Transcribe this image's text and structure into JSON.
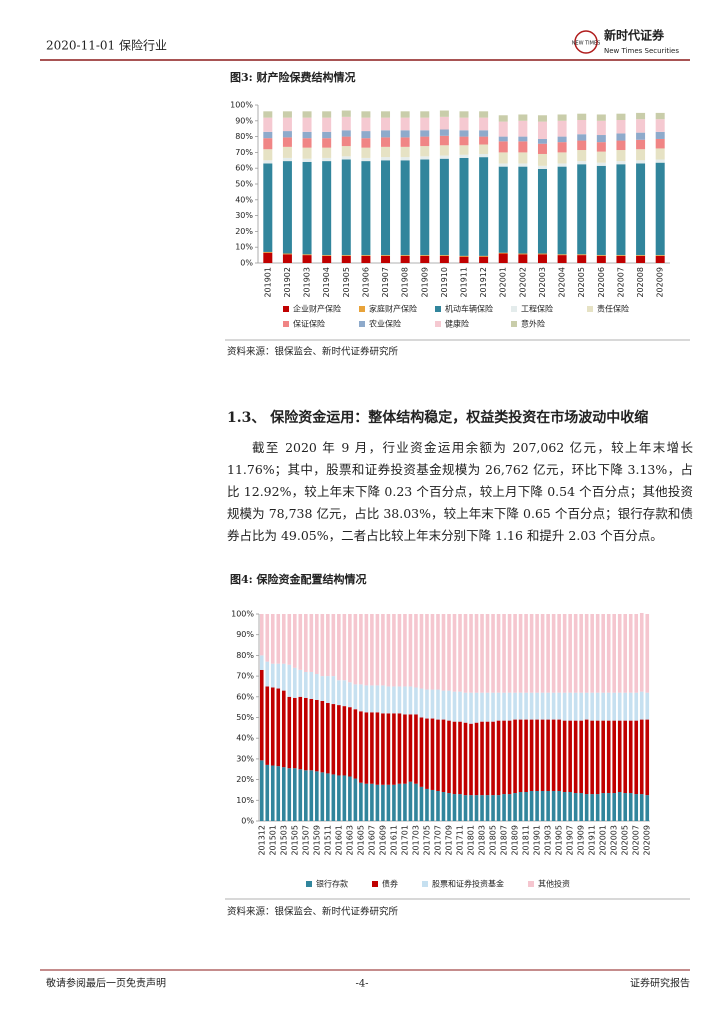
{
  "header": {
    "date_title": "2020-11-01 保险行业",
    "logo_mark": "NEW TIMES",
    "logo_cn": "新时代证券",
    "logo_en": "New Times Securities"
  },
  "section": {
    "heading": "1.3、 保险资金运用：整体结构稳定，权益类投资在市场波动中收缩",
    "paragraph": "截至 2020 年 9 月，行业资金运用余额为 207,062 亿元，较上年末增长 11.76%；其中，股票和证券投资基金规模为 26,762 亿元，环比下降 3.13%，占比 12.92%，较上年末下降 0.23 个百分点，较上月下降 0.54 个百分点；其他投资规模为 78,738 亿元，占比 38.03%，较上年末下降 0.65 个百分点；银行存款和债券占比为 49.05%，二者占比较上年末分别下降 1.16 和提升 2.03 个百分点。"
  },
  "chart_data": [
    {
      "type": "bar",
      "stacked": true,
      "title": "图3:  财产险保费结构情况",
      "source": "资料来源：银保监会、新时代证券研究所",
      "categories": [
        "201901",
        "201902",
        "201903",
        "201904",
        "201905",
        "201906",
        "201907",
        "201908",
        "201909",
        "201910",
        "201911",
        "201912",
        "202001",
        "202002",
        "202003",
        "202004",
        "202005",
        "202006",
        "202007",
        "202008",
        "202009"
      ],
      "ylim": [
        0,
        100
      ],
      "yticks": [
        {
          "value": 0,
          "label": "0%"
        },
        {
          "value": 10,
          "label": "10%"
        },
        {
          "value": 20,
          "label": "20%"
        },
        {
          "value": 30,
          "label": "30%"
        },
        {
          "value": 40,
          "label": "40%"
        },
        {
          "value": 50,
          "label": "50%"
        },
        {
          "value": 60,
          "label": "60%"
        },
        {
          "value": 70,
          "label": "70%"
        },
        {
          "value": 80,
          "label": "80%"
        },
        {
          "value": 90,
          "label": "90%"
        },
        {
          "value": 100,
          "label": "100%"
        }
      ],
      "series": [
        {
          "name": "企业财产保险",
          "color": "#c00000",
          "values": [
            6.5,
            5.5,
            5,
            4.5,
            4.5,
            4.5,
            4.5,
            4.5,
            4.5,
            4.5,
            4,
            4,
            6,
            5.5,
            5.5,
            5,
            5,
            4.5,
            4.5,
            4.5,
            4.5
          ]
        },
        {
          "name": "家庭财产保险",
          "color": "#e8a33a",
          "values": [
            0.5,
            0.5,
            0.5,
            0.5,
            0.5,
            0.5,
            0.5,
            0.5,
            0.5,
            0.5,
            0.5,
            0.5,
            0.5,
            0.5,
            0.5,
            0.5,
            0.5,
            0.5,
            0.5,
            0.5,
            0.5
          ]
        },
        {
          "name": "机动车辆保险",
          "color": "#31859c",
          "values": [
            56,
            58.5,
            58.5,
            59.5,
            60.5,
            59.5,
            60,
            60,
            60.5,
            61,
            62,
            62.5,
            54.5,
            55,
            53.5,
            55.5,
            57,
            56.5,
            57.5,
            58,
            58.5
          ]
        },
        {
          "name": "工程保险",
          "color": "#e4ecec",
          "values": [
            2,
            2,
            2,
            2,
            2,
            2,
            2,
            2,
            2,
            2,
            2,
            2,
            2,
            2,
            2,
            2,
            2,
            2,
            2,
            2,
            2
          ]
        },
        {
          "name": "责任保险",
          "color": "#e6e2c4",
          "values": [
            7,
            7,
            7,
            6.5,
            6.5,
            6.5,
            6.5,
            6.5,
            6.5,
            6.5,
            6,
            6,
            7,
            7,
            7.5,
            7,
            7,
            7,
            7,
            7,
            7
          ]
        },
        {
          "name": "保证保险",
          "color": "#f08585",
          "values": [
            7,
            6,
            6,
            6,
            6,
            6,
            6,
            6,
            6,
            6,
            5.5,
            5,
            7,
            7,
            6.5,
            6.5,
            6,
            6,
            6,
            6,
            6
          ]
        },
        {
          "name": "农业保险",
          "color": "#8eaacb",
          "values": [
            4,
            4,
            4,
            4,
            4,
            4.5,
            4.5,
            4.5,
            4,
            4,
            4,
            4,
            3,
            3,
            3,
            3.5,
            4,
            4.5,
            4.5,
            4.5,
            4.5
          ]
        },
        {
          "name": "健康险",
          "color": "#f5c9d1",
          "values": [
            9,
            8.5,
            9,
            9,
            8.5,
            8.5,
            8,
            8,
            8,
            8,
            8,
            8,
            9.5,
            10,
            11,
            10,
            9,
            9,
            8.5,
            8.5,
            8
          ]
        },
        {
          "name": "意外险",
          "color": "#c9cdaa",
          "values": [
            4,
            4,
            4,
            4,
            4,
            4,
            4,
            4,
            4,
            4,
            4,
            4,
            4,
            4,
            4,
            4,
            4,
            4,
            4,
            4,
            4
          ]
        }
      ]
    },
    {
      "type": "bar",
      "stacked": true,
      "title": "图4:  保险资金配置结构情况",
      "source": "资料来源：银保监会、新时代证券研究所",
      "categories": [
        "201312",
        null,
        "201501",
        null,
        "201503",
        null,
        "201505",
        null,
        "201507",
        null,
        "201509",
        null,
        "201511",
        null,
        "201601",
        null,
        "201603",
        null,
        "201605",
        null,
        "201607",
        null,
        "201609",
        null,
        "201611",
        null,
        "201701",
        null,
        "201703",
        null,
        "201705",
        null,
        "201707",
        null,
        "201709",
        null,
        "201711",
        null,
        "201801",
        null,
        "201803",
        null,
        "201805",
        null,
        "201807",
        null,
        "201809",
        null,
        "201811",
        null,
        "201901",
        null,
        "201903",
        null,
        "201905",
        null,
        "201907",
        null,
        "201909",
        null,
        "201911",
        null,
        "202001",
        null,
        "202003",
        null,
        "202005",
        null,
        "202007",
        null,
        "202009"
      ],
      "ylim": [
        0,
        100
      ],
      "yticks": [
        {
          "value": 0,
          "label": "0%"
        },
        {
          "value": 10,
          "label": "10%"
        },
        {
          "value": 20,
          "label": "20%"
        },
        {
          "value": 30,
          "label": "30%"
        },
        {
          "value": 40,
          "label": "40%"
        },
        {
          "value": 50,
          "label": "50%"
        },
        {
          "value": 60,
          "label": "60%"
        },
        {
          "value": 70,
          "label": "70%"
        },
        {
          "value": 80,
          "label": "80%"
        },
        {
          "value": 90,
          "label": "90%"
        },
        {
          "value": 100,
          "label": "100%"
        }
      ],
      "series": [
        {
          "name": "银行存款",
          "color": "#31859c",
          "values": [
            29.3,
            27.1,
            26.8,
            26.5,
            26,
            25.5,
            25.5,
            25,
            24.5,
            24.5,
            24,
            23.5,
            23,
            22.5,
            22,
            22,
            21.5,
            20.5,
            18.5,
            18,
            18,
            17.5,
            17.5,
            17.5,
            17.5,
            18,
            18,
            19,
            18,
            16.5,
            15.5,
            15,
            14.5,
            14,
            13.5,
            13,
            13,
            12.5,
            12.5,
            12.5,
            12.5,
            12.5,
            12.5,
            12.5,
            13,
            13,
            13.5,
            14,
            14,
            14.5,
            14.5,
            14.5,
            14.5,
            14.5,
            14.5,
            14,
            14,
            13.5,
            13.5,
            13,
            13,
            13,
            13.5,
            13.5,
            13.5,
            14,
            13.5,
            13.5,
            13,
            13,
            12.5
          ]
        },
        {
          "name": "债券",
          "color": "#c00000",
          "values": [
            43.7,
            37.9,
            37.7,
            37.5,
            37,
            34.5,
            34,
            35,
            35,
            34.5,
            34.5,
            34.5,
            34,
            34,
            34,
            33.5,
            33.5,
            33.5,
            34.5,
            34.5,
            34.5,
            35,
            34.5,
            34.5,
            34.5,
            34,
            33.5,
            32.5,
            33.5,
            33.5,
            34,
            34.5,
            34.5,
            35,
            35,
            35,
            35,
            35,
            34.5,
            35,
            35.5,
            35.5,
            35.5,
            36,
            35.5,
            35.5,
            35.5,
            35,
            35,
            34.5,
            34.5,
            34.5,
            34.5,
            34.5,
            34.5,
            34.5,
            34.5,
            35,
            35,
            36,
            35.5,
            35.5,
            35,
            35,
            35,
            34.5,
            35,
            35,
            35.5,
            36,
            36.5
          ]
        },
        {
          "name": "股票和证券投资基金",
          "color": "#c6e0f0",
          "values": [
            7,
            12,
            11.5,
            12,
            13,
            15.5,
            14.5,
            13,
            12.5,
            13,
            12.5,
            12,
            13,
            13.5,
            12,
            12.5,
            12,
            12,
            13,
            13,
            13,
            13,
            13.5,
            13,
            13,
            13,
            13.5,
            13.5,
            13,
            14,
            14,
            14,
            14.5,
            14,
            14.5,
            14.5,
            14.5,
            14.5,
            15,
            14.5,
            14,
            14,
            14,
            13.5,
            13.5,
            13.5,
            13,
            13,
            13,
            13,
            13,
            13,
            13,
            13,
            13,
            13.5,
            13.5,
            13.5,
            13.5,
            13,
            13.5,
            13.5,
            13.5,
            13.5,
            13.5,
            13.5,
            13.5,
            13.5,
            13.5,
            13.5,
            13
          ]
        },
        {
          "name": "其他投资",
          "color": "#f5c6cf",
          "values": [
            20,
            23,
            24,
            24,
            24,
            24.5,
            26,
            27,
            28,
            28,
            29,
            30,
            30,
            30,
            32,
            32,
            33,
            34,
            34,
            34.5,
            34.5,
            34.5,
            34.5,
            35,
            35,
            35,
            35,
            35,
            35.5,
            36,
            36.5,
            36.5,
            36.5,
            37,
            37,
            37.5,
            37.5,
            38,
            38,
            38,
            38,
            38,
            38,
            38,
            38,
            38,
            38,
            38,
            38,
            38,
            38,
            38,
            38,
            38,
            38,
            38,
            38,
            38,
            38,
            38,
            38,
            38,
            38,
            38,
            38,
            38,
            38,
            38,
            38,
            38,
            38
          ]
        }
      ]
    }
  ],
  "footer": {
    "left": "敬请参阅最后一页免责声明",
    "page": "-4-",
    "right": "证券研究报告"
  }
}
